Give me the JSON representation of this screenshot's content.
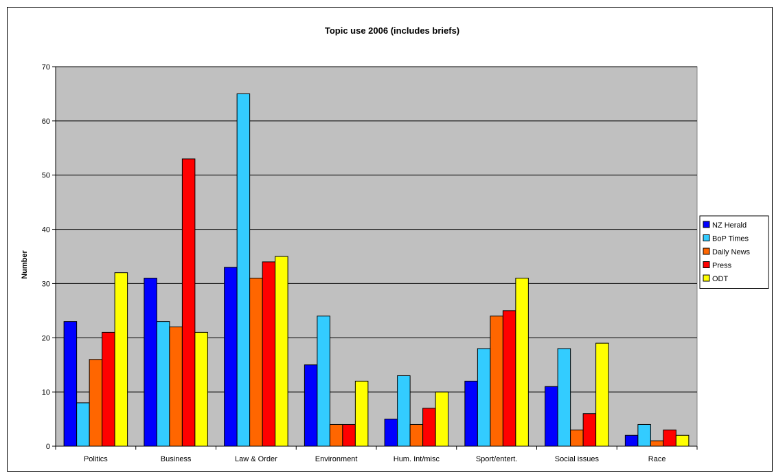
{
  "chart_data": {
    "type": "bar",
    "title": "Topic use 2006 (includes briefs)",
    "xlabel": "",
    "ylabel": "Number",
    "ylim": [
      0,
      70
    ],
    "yticks": [
      0,
      10,
      20,
      30,
      40,
      50,
      60,
      70
    ],
    "grid": true,
    "legend_position": "right",
    "plot_background": "#C0C0C0",
    "categories": [
      "Politics",
      "Business",
      "Law & Order",
      "Environment",
      "Hum. Int/misc",
      "Sport/entert.",
      "Social issues",
      "Race"
    ],
    "series": [
      {
        "name": "NZ Herald",
        "color": "#0000FF",
        "values": [
          23,
          31,
          33,
          15,
          5,
          12,
          11,
          2
        ]
      },
      {
        "name": "BoP Times",
        "color": "#33CCFF",
        "values": [
          8,
          23,
          65,
          24,
          13,
          18,
          18,
          4
        ]
      },
      {
        "name": "Daily News",
        "color": "#FF6600",
        "values": [
          16,
          22,
          31,
          4,
          4,
          24,
          3,
          1
        ]
      },
      {
        "name": "Press",
        "color": "#FF0000",
        "values": [
          21,
          53,
          34,
          4,
          7,
          25,
          6,
          3
        ]
      },
      {
        "name": "ODT",
        "color": "#FFFF00",
        "values": [
          32,
          21,
          35,
          12,
          10,
          31,
          19,
          2
        ]
      }
    ]
  }
}
